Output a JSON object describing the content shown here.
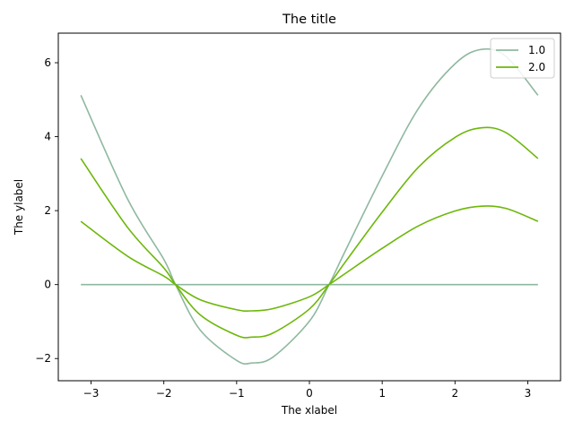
{
  "chart_data": {
    "type": "line",
    "title": "The title",
    "xlabel": "The xlabel",
    "ylabel": "The ylabel",
    "xlim": [
      -3.45,
      3.45
    ],
    "ylim": [
      -2.6,
      6.8
    ],
    "xticks": [
      -3,
      -2,
      -1,
      0,
      1,
      2,
      3
    ],
    "yticks": [
      -2,
      0,
      2,
      4,
      6
    ],
    "ytick_labels": [
      "−2",
      "0",
      "2",
      "4",
      "6"
    ],
    "xtick_labels": [
      "−3",
      "−2",
      "−1",
      "0",
      "1",
      "2",
      "3"
    ],
    "grid": false,
    "legend": {
      "placement": "upper-right",
      "entries": [
        "1.0",
        "2.0"
      ]
    },
    "series": [
      {
        "name": "1.0",
        "color": "#8fb8a0",
        "x": [
          -3.14,
          -2.5,
          -2.0,
          -1.84,
          -1.5,
          -1.0,
          -0.79,
          -0.5,
          0.0,
          0.27,
          0.5,
          1.0,
          1.5,
          2.0,
          2.36,
          2.7,
          3.14
        ],
        "values": [
          5.12,
          2.32,
          0.68,
          0.0,
          -1.23,
          -2.05,
          -2.12,
          -1.96,
          -0.99,
          0.0,
          0.94,
          2.94,
          4.77,
          5.97,
          6.36,
          6.17,
          5.12
        ]
      },
      {
        "name": "",
        "color": "#8fb8a0",
        "x": [
          -3.14,
          3.14
        ],
        "values": [
          0.0,
          0.0
        ]
      },
      {
        "name": "2.0",
        "color": "#6db70a",
        "x": [
          -3.14,
          -2.5,
          -2.0,
          -1.84,
          -1.5,
          -1.0,
          -0.79,
          -0.5,
          0.0,
          0.27,
          0.5,
          1.0,
          1.5,
          2.0,
          2.36,
          2.7,
          3.14
        ],
        "values": [
          3.41,
          1.55,
          0.45,
          0.0,
          -0.82,
          -1.37,
          -1.42,
          -1.31,
          -0.66,
          0.0,
          0.63,
          1.96,
          3.18,
          3.98,
          4.24,
          4.11,
          3.41
        ]
      },
      {
        "name": "",
        "color": "#6db70a",
        "x": [
          -3.14,
          -2.5,
          -2.0,
          -1.84,
          -1.5,
          -1.0,
          -0.79,
          -0.5,
          0.0,
          0.27,
          0.5,
          1.0,
          1.5,
          2.0,
          2.36,
          2.7,
          3.14
        ],
        "values": [
          1.71,
          0.77,
          0.23,
          0.0,
          -0.41,
          -0.68,
          -0.71,
          -0.65,
          -0.33,
          0.0,
          0.31,
          0.98,
          1.59,
          1.99,
          2.12,
          2.06,
          1.71
        ]
      }
    ]
  }
}
